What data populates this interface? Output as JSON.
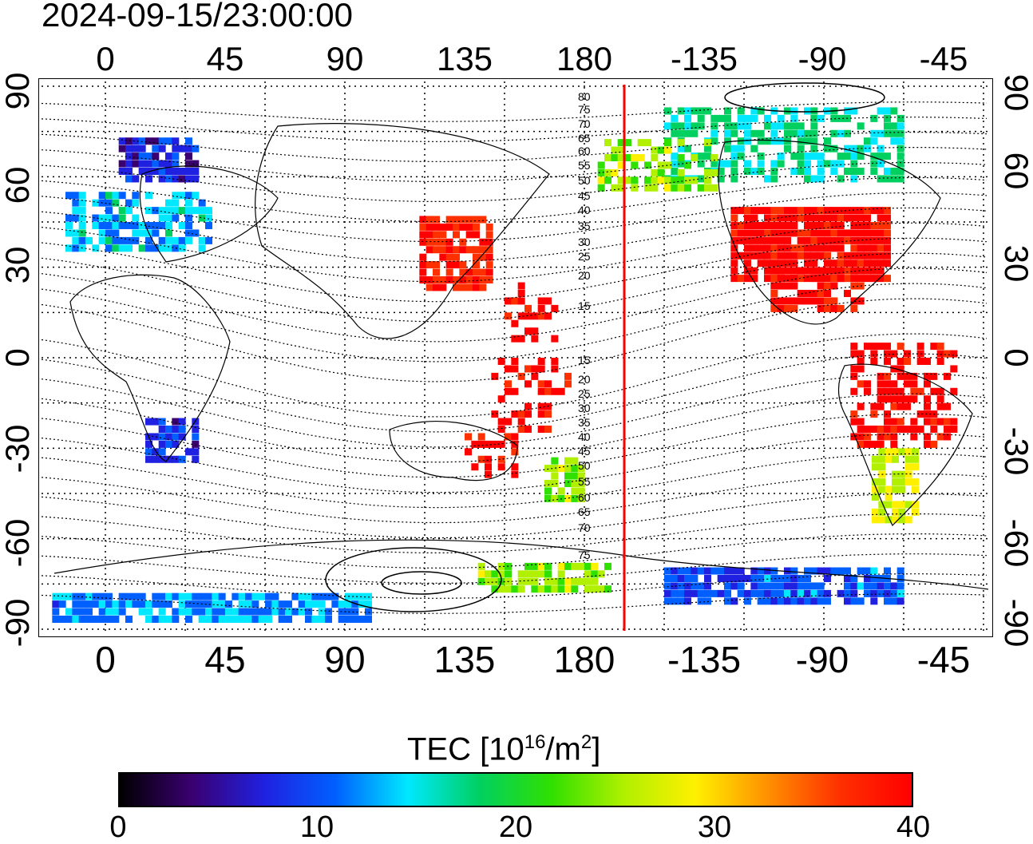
{
  "timestamp": "2024-09-15/23:00:00",
  "axes": {
    "top_lon_labels": [
      "0",
      "45",
      "90",
      "135",
      "180",
      "-135",
      "-90",
      "-45"
    ],
    "bottom_lon_labels": [
      "0",
      "45",
      "90",
      "135",
      "180",
      "-135",
      "-90",
      "-45"
    ],
    "left_lat_labels": [
      "90",
      "60",
      "30",
      "0",
      "-30",
      "-60",
      "-90"
    ],
    "right_lat_labels": [
      "90",
      "60",
      "30",
      "0",
      "-30",
      "-60",
      "-90"
    ]
  },
  "terminator_line": {
    "color": "#ff0000",
    "longitude": -165
  },
  "contour_labels": [
    "80",
    "75",
    "70",
    "65",
    "60",
    "55",
    "50",
    "45",
    "40",
    "35",
    "30",
    "25",
    "20",
    "15",
    "15",
    "20",
    "25",
    "30",
    "35",
    "40",
    "45",
    "50",
    "55",
    "60",
    "65",
    "70",
    "75"
  ],
  "colorbar": {
    "title_main": "TEC  [10",
    "title_sup1": "16",
    "title_mid": "/m",
    "title_sup2": "2",
    "title_end": "]",
    "tick_labels": [
      "0",
      "10",
      "20",
      "30",
      "40"
    ],
    "min": 0,
    "max": 40,
    "colors": [
      "#000000",
      "#3a0070",
      "#2020e0",
      "#0060ff",
      "#00e8ff",
      "#00d060",
      "#30e000",
      "#b0f000",
      "#fff000",
      "#ff9000",
      "#ff3000",
      "#ff0000"
    ]
  },
  "tec_regions": [
    {
      "name": "north-america",
      "tec": 40
    },
    {
      "name": "south-america-north",
      "tec": 40
    },
    {
      "name": "south-america-south",
      "tec": 27
    },
    {
      "name": "east-asia-japan",
      "tec": 38
    },
    {
      "name": "pacific-islands",
      "tec": 40
    },
    {
      "name": "australia-southeast",
      "tec": 40
    },
    {
      "name": "new-zealand",
      "tec": 25
    },
    {
      "name": "europe",
      "tec": 14
    },
    {
      "name": "scandinavia",
      "tec": 7
    },
    {
      "name": "south-africa",
      "tec": 8
    },
    {
      "name": "canada-arctic",
      "tec": 17
    },
    {
      "name": "alaska",
      "tec": 25
    },
    {
      "name": "antarctica-pacific",
      "tec": 10
    },
    {
      "name": "antarctica-atlantic",
      "tec": 12
    },
    {
      "name": "antarctic-peninsula",
      "tec": 25
    }
  ]
}
